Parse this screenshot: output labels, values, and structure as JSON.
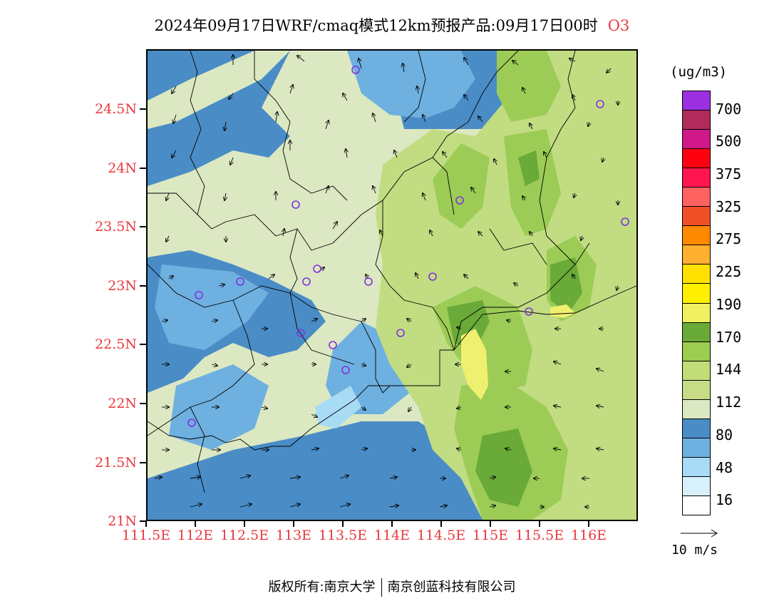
{
  "title": {
    "main": "2024年09月17日WRF/cmaq模式12km预报产品:09月17日00时",
    "species": "O3"
  },
  "map": {
    "lon_range": [
      111.5,
      116.5
    ],
    "lat_range": [
      21.0,
      25.0
    ],
    "lat_labels": [
      "24.5N",
      "24N",
      "23.5N",
      "23N",
      "22.5N",
      "22N",
      "21.5N",
      "21N"
    ],
    "lat_values": [
      24.5,
      24.0,
      23.5,
      23.0,
      22.5,
      22.0,
      21.5,
      21.0
    ],
    "lon_labels": [
      "111.5E",
      "112E",
      "112.5E",
      "113E",
      "113.5E",
      "114E",
      "114.5E",
      "115E",
      "115.5E",
      "116E"
    ],
    "lon_values": [
      111.5,
      112.0,
      112.5,
      113.0,
      113.5,
      114.0,
      114.5,
      115.0,
      115.5,
      116.0
    ],
    "colors": {
      "field_base": "#4a8cc6",
      "field_mid_blue": "#6eb0e0",
      "field_light_blue": "#a8dbf5",
      "field_pale": "#dce8c2",
      "field_light_green": "#c2dc82",
      "field_green": "#9ccc56",
      "field_dark_green": "#6aaa38",
      "field_yellow": "#f0f070",
      "label_red": "#e8383d",
      "station_purple": "#8030e0"
    }
  },
  "legend": {
    "unit": "(ug/m3)",
    "labels": [
      "700",
      "500",
      "375",
      "325",
      "275",
      "225",
      "190",
      "170",
      "144",
      "112",
      "80",
      "48",
      "16"
    ],
    "colors_top_to_bottom": [
      "#9b30e0",
      "#b02a5a",
      "#d01888",
      "#ff0010",
      "#ff1550",
      "#ff6060",
      "#f05028",
      "#ff8a00",
      "#ffb030",
      "#ffe000",
      "#fff000",
      "#f0f060",
      "#6aaa38",
      "#9ccc50",
      "#c2dc78",
      "#c8dc88",
      "#dce8c2",
      "#4a8cc6",
      "#6eb0e0",
      "#a8dbf5",
      "#d8f0fa",
      "#ffffff"
    ]
  },
  "wind_reference": {
    "label": "10 m/s"
  },
  "footer": {
    "left": "版权所有:南京大学",
    "right": "南京创蓝科技有限公司"
  }
}
